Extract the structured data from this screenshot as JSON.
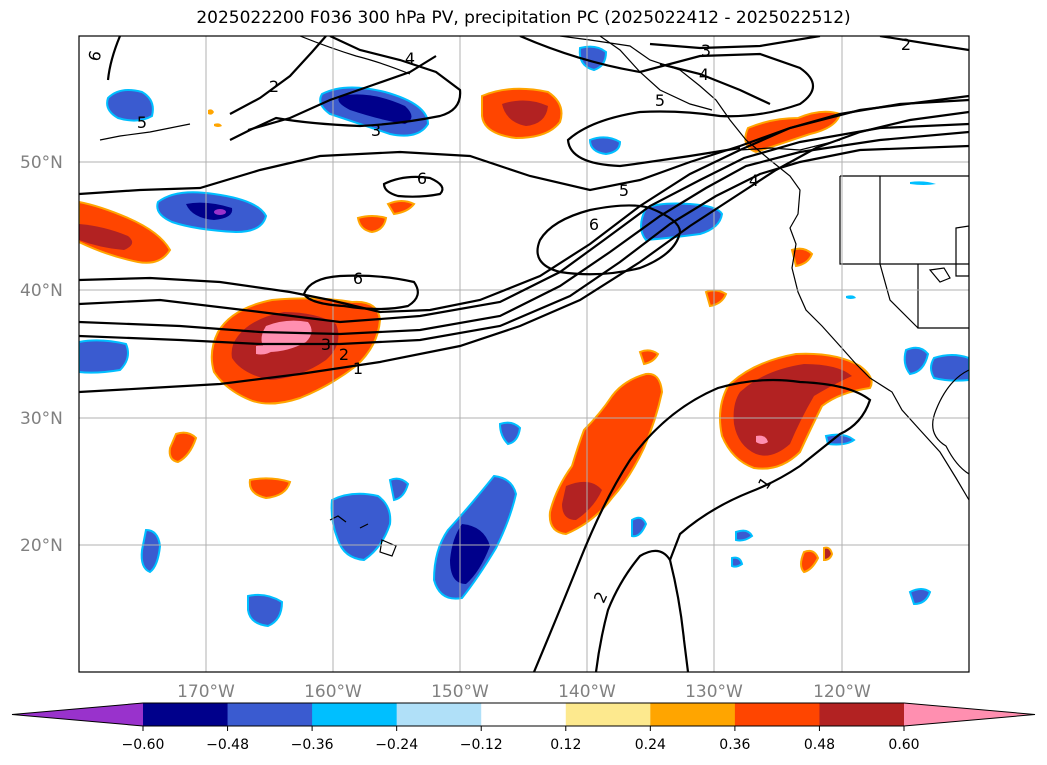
{
  "title": "2025022200 F036 300 hPa PV, precipitation PC (2025022412 - 2025022512)",
  "map": {
    "lat_labels": [
      "50°N",
      "40°N",
      "30°N",
      "20°N"
    ],
    "lon_labels": [
      "170°W",
      "160°W",
      "150°W",
      "140°W",
      "130°W",
      "120°W"
    ],
    "grid": true,
    "pv_contour_labels": [
      "6",
      "3",
      "2",
      "4",
      "5",
      "5",
      "3",
      "6",
      "5",
      "6",
      "6",
      "3",
      "2",
      "1",
      "4",
      "1",
      "2",
      "2"
    ]
  },
  "colorbar": {
    "ticks": [
      "−0.60",
      "−0.48",
      "−0.36",
      "−0.24",
      "−0.12",
      "0.12",
      "0.24",
      "0.36",
      "0.48",
      "0.60"
    ],
    "colors": [
      "#9932cc",
      "#00008b",
      "#3a5bd0",
      "#00bfff",
      "#b0e0f8",
      "#ffffff",
      "#fde98e",
      "#ffa500",
      "#ff4500",
      "#b22222",
      "#ff8fb0"
    ]
  }
}
